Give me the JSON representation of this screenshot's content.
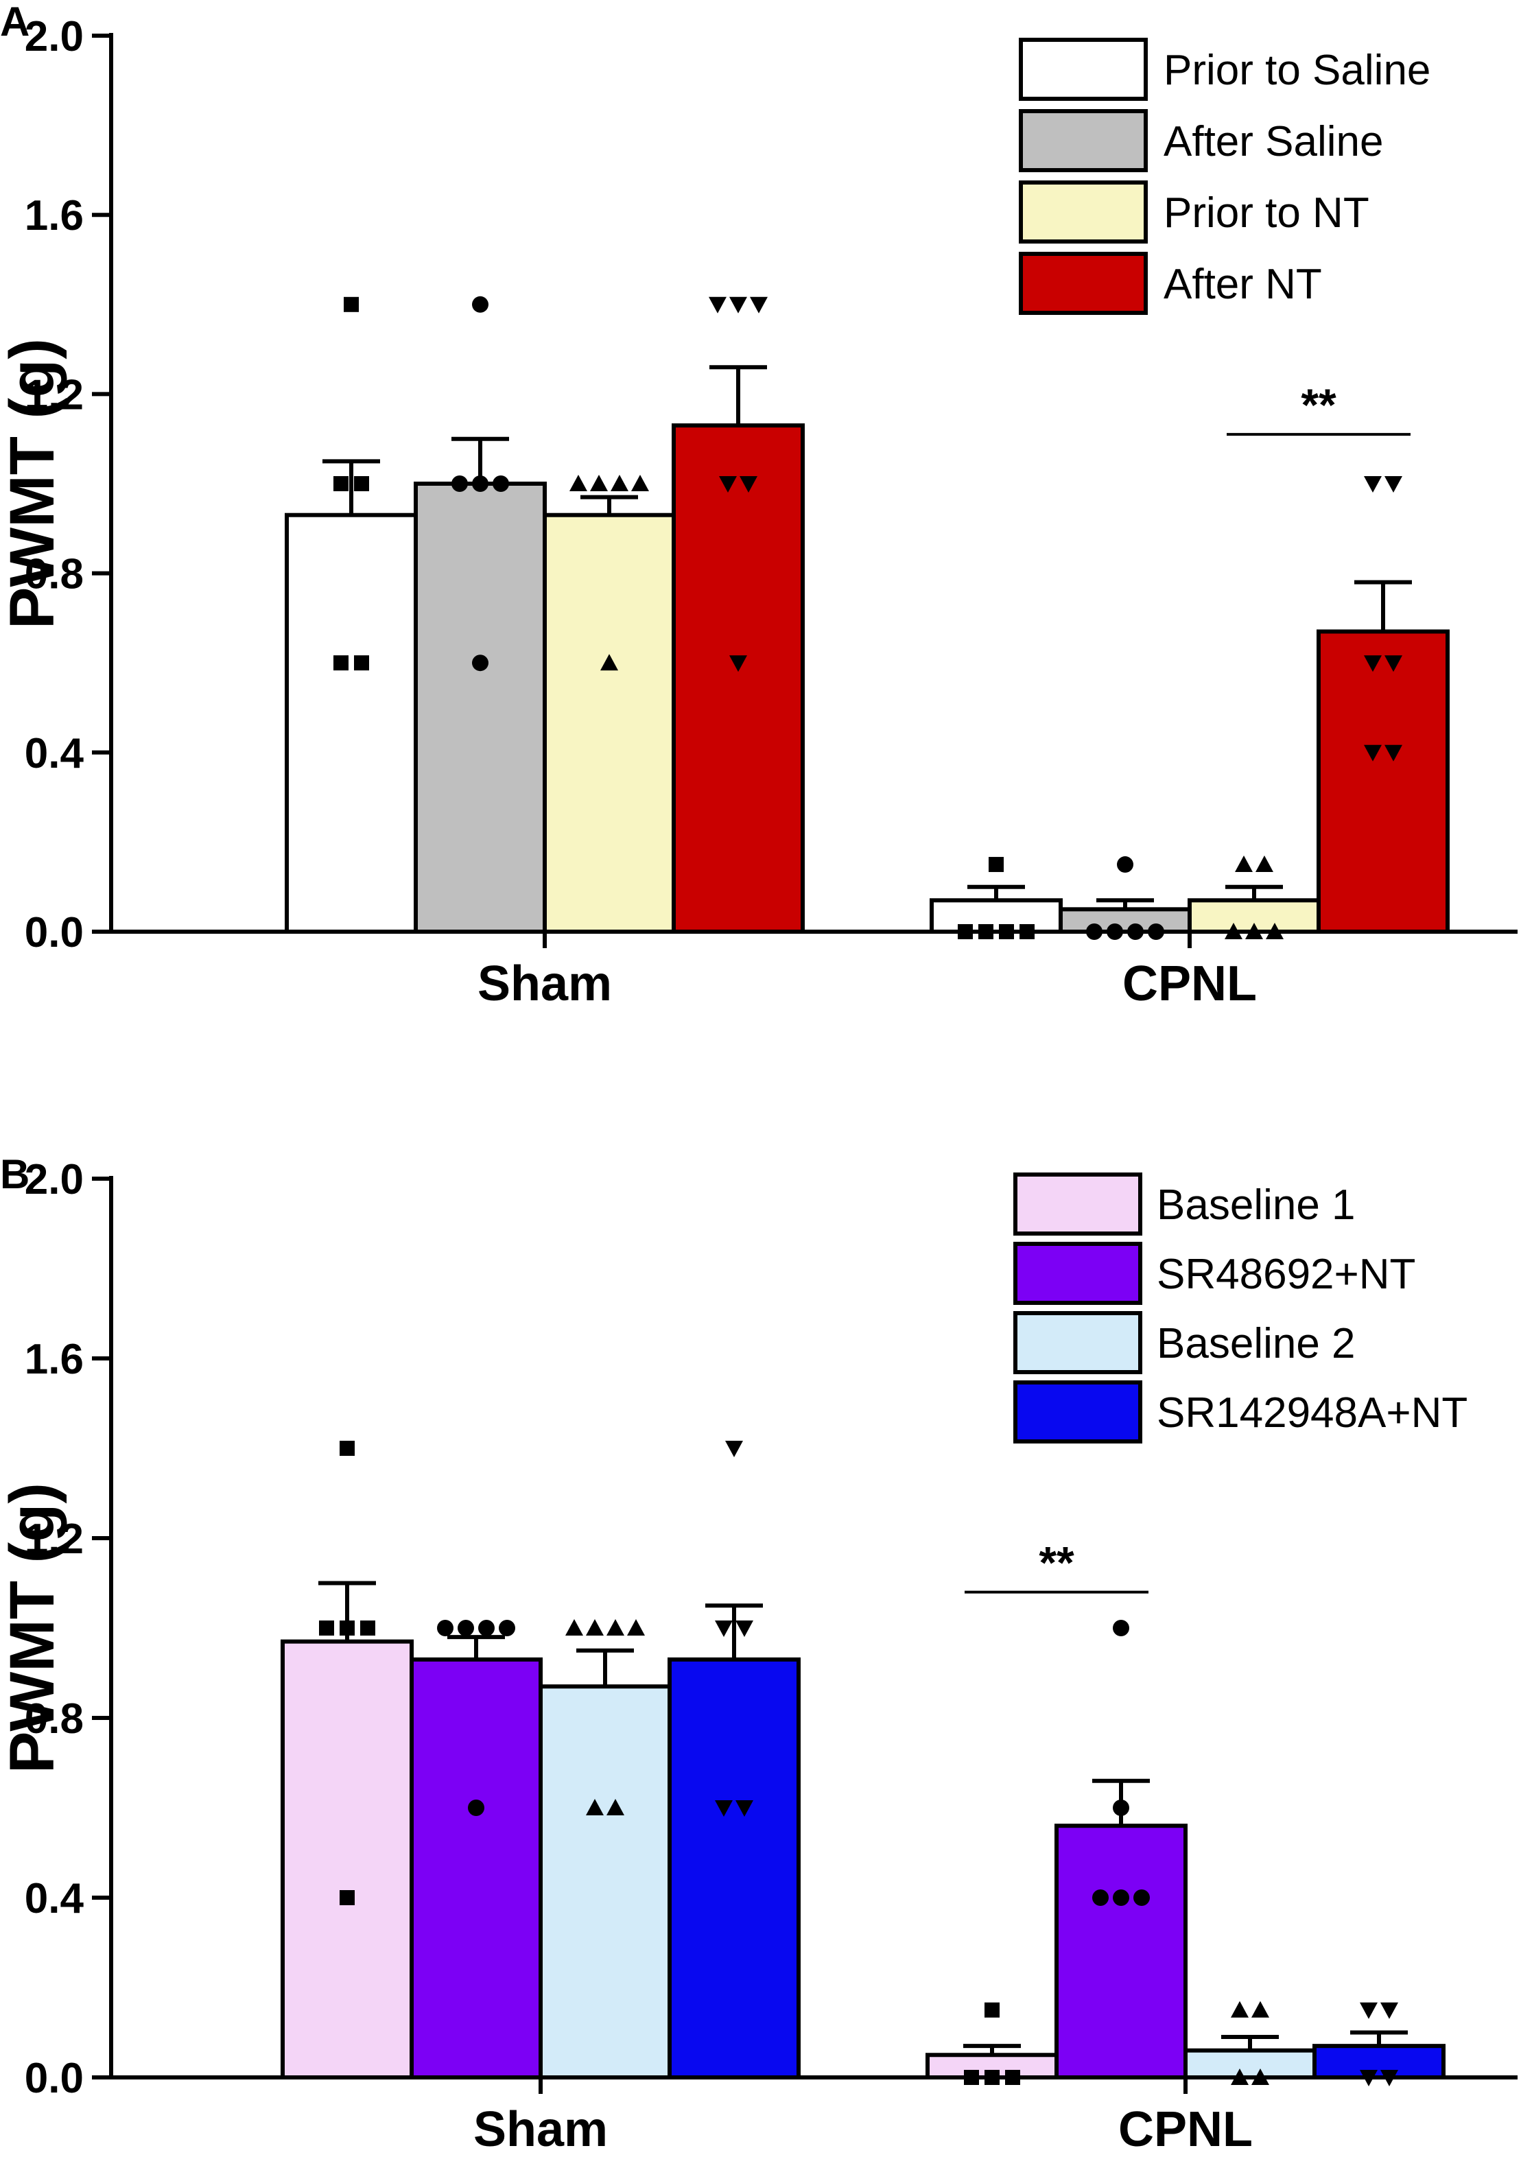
{
  "chart_data": [
    {
      "panel": "A",
      "type": "bar",
      "ylabel": "PWMT (g)",
      "ylim": [
        0,
        2.0
      ],
      "yticks": [
        "0.0",
        "0.4",
        "0.8",
        "1.2",
        "1.6",
        "2.0"
      ],
      "categories": [
        "Sham",
        "CPNL"
      ],
      "series": [
        {
          "name": "Prior to Saline",
          "color": "#ffffff",
          "marker": "square",
          "values": [
            0.93,
            0.07
          ],
          "sem": [
            0.12,
            0.03
          ],
          "points": [
            [
              1.4,
              1.0,
              1.0,
              0.6,
              0.6
            ],
            [
              0.0,
              0.0,
              0.0,
              0.0,
              0.15
            ]
          ]
        },
        {
          "name": "After Saline",
          "color": "#bfbfbf",
          "marker": "circle",
          "values": [
            1.0,
            0.05
          ],
          "sem": [
            0.1,
            0.02
          ],
          "points": [
            [
              1.4,
              1.0,
              1.0,
              1.0,
              0.6
            ],
            [
              0.0,
              0.0,
              0.0,
              0.0,
              0.15
            ]
          ]
        },
        {
          "name": "Prior to NT",
          "color": "#f8f5c3",
          "marker": "triangle-up",
          "values": [
            0.93,
            0.07
          ],
          "sem": [
            0.04,
            0.03
          ],
          "points": [
            [
              1.0,
              1.0,
              1.0,
              1.0,
              0.6
            ],
            [
              0.0,
              0.0,
              0.0,
              0.15,
              0.15
            ]
          ]
        },
        {
          "name": "After NT",
          "color": "#c90000",
          "marker": "triangle-down",
          "values": [
            1.13,
            0.67
          ],
          "sem": [
            0.13,
            0.11
          ],
          "points": [
            [
              1.4,
              1.4,
              1.4,
              1.0,
              1.0,
              0.6
            ],
            [
              1.0,
              1.0,
              0.6,
              0.6,
              0.4,
              0.4
            ]
          ]
        }
      ],
      "significance": {
        "label": "**",
        "group": "CPNL",
        "from_series": 2,
        "to_series": 3,
        "y": 1.11
      }
    },
    {
      "panel": "B",
      "type": "bar",
      "ylabel": "PWMT (g)",
      "ylim": [
        0,
        2.0
      ],
      "yticks": [
        "0.0",
        "0.4",
        "0.8",
        "1.2",
        "1.6",
        "2.0"
      ],
      "categories": [
        "Sham",
        "CPNL"
      ],
      "series": [
        {
          "name": "Baseline 1",
          "color": "#f4d5f7",
          "marker": "square",
          "values": [
            0.97,
            0.05
          ],
          "sem": [
            0.13,
            0.02
          ],
          "points": [
            [
              1.4,
              1.0,
              1.0,
              1.0,
              0.4
            ],
            [
              0.0,
              0.0,
              0.0,
              0.15
            ]
          ]
        },
        {
          "name": "SR48692+NT",
          "color": "#7c00f5",
          "marker": "circle",
          "values": [
            0.93,
            0.56
          ],
          "sem": [
            0.05,
            0.1
          ],
          "points": [
            [
              1.0,
              1.0,
              1.0,
              1.0,
              0.6
            ],
            [
              1.0,
              0.6,
              0.4,
              0.4,
              0.4
            ]
          ]
        },
        {
          "name": "Baseline 2",
          "color": "#d3ebf9",
          "marker": "triangle-up",
          "values": [
            0.87,
            0.06
          ],
          "sem": [
            0.08,
            0.03
          ],
          "points": [
            [
              1.0,
              1.0,
              1.0,
              1.0,
              0.6,
              0.6
            ],
            [
              0.0,
              0.0,
              0.15,
              0.15
            ]
          ]
        },
        {
          "name": "SR142948A+NT",
          "color": "#0808f0",
          "marker": "triangle-down",
          "values": [
            0.93,
            0.07
          ],
          "sem": [
            0.12,
            0.03
          ],
          "points": [
            [
              1.4,
              1.0,
              1.0,
              0.6,
              0.6
            ],
            [
              0.15,
              0.15,
              0.0,
              0.0
            ]
          ]
        }
      ],
      "significance": {
        "label": "**",
        "group": "CPNL",
        "from_series": 0,
        "to_series": 1,
        "y": 1.08
      }
    }
  ]
}
